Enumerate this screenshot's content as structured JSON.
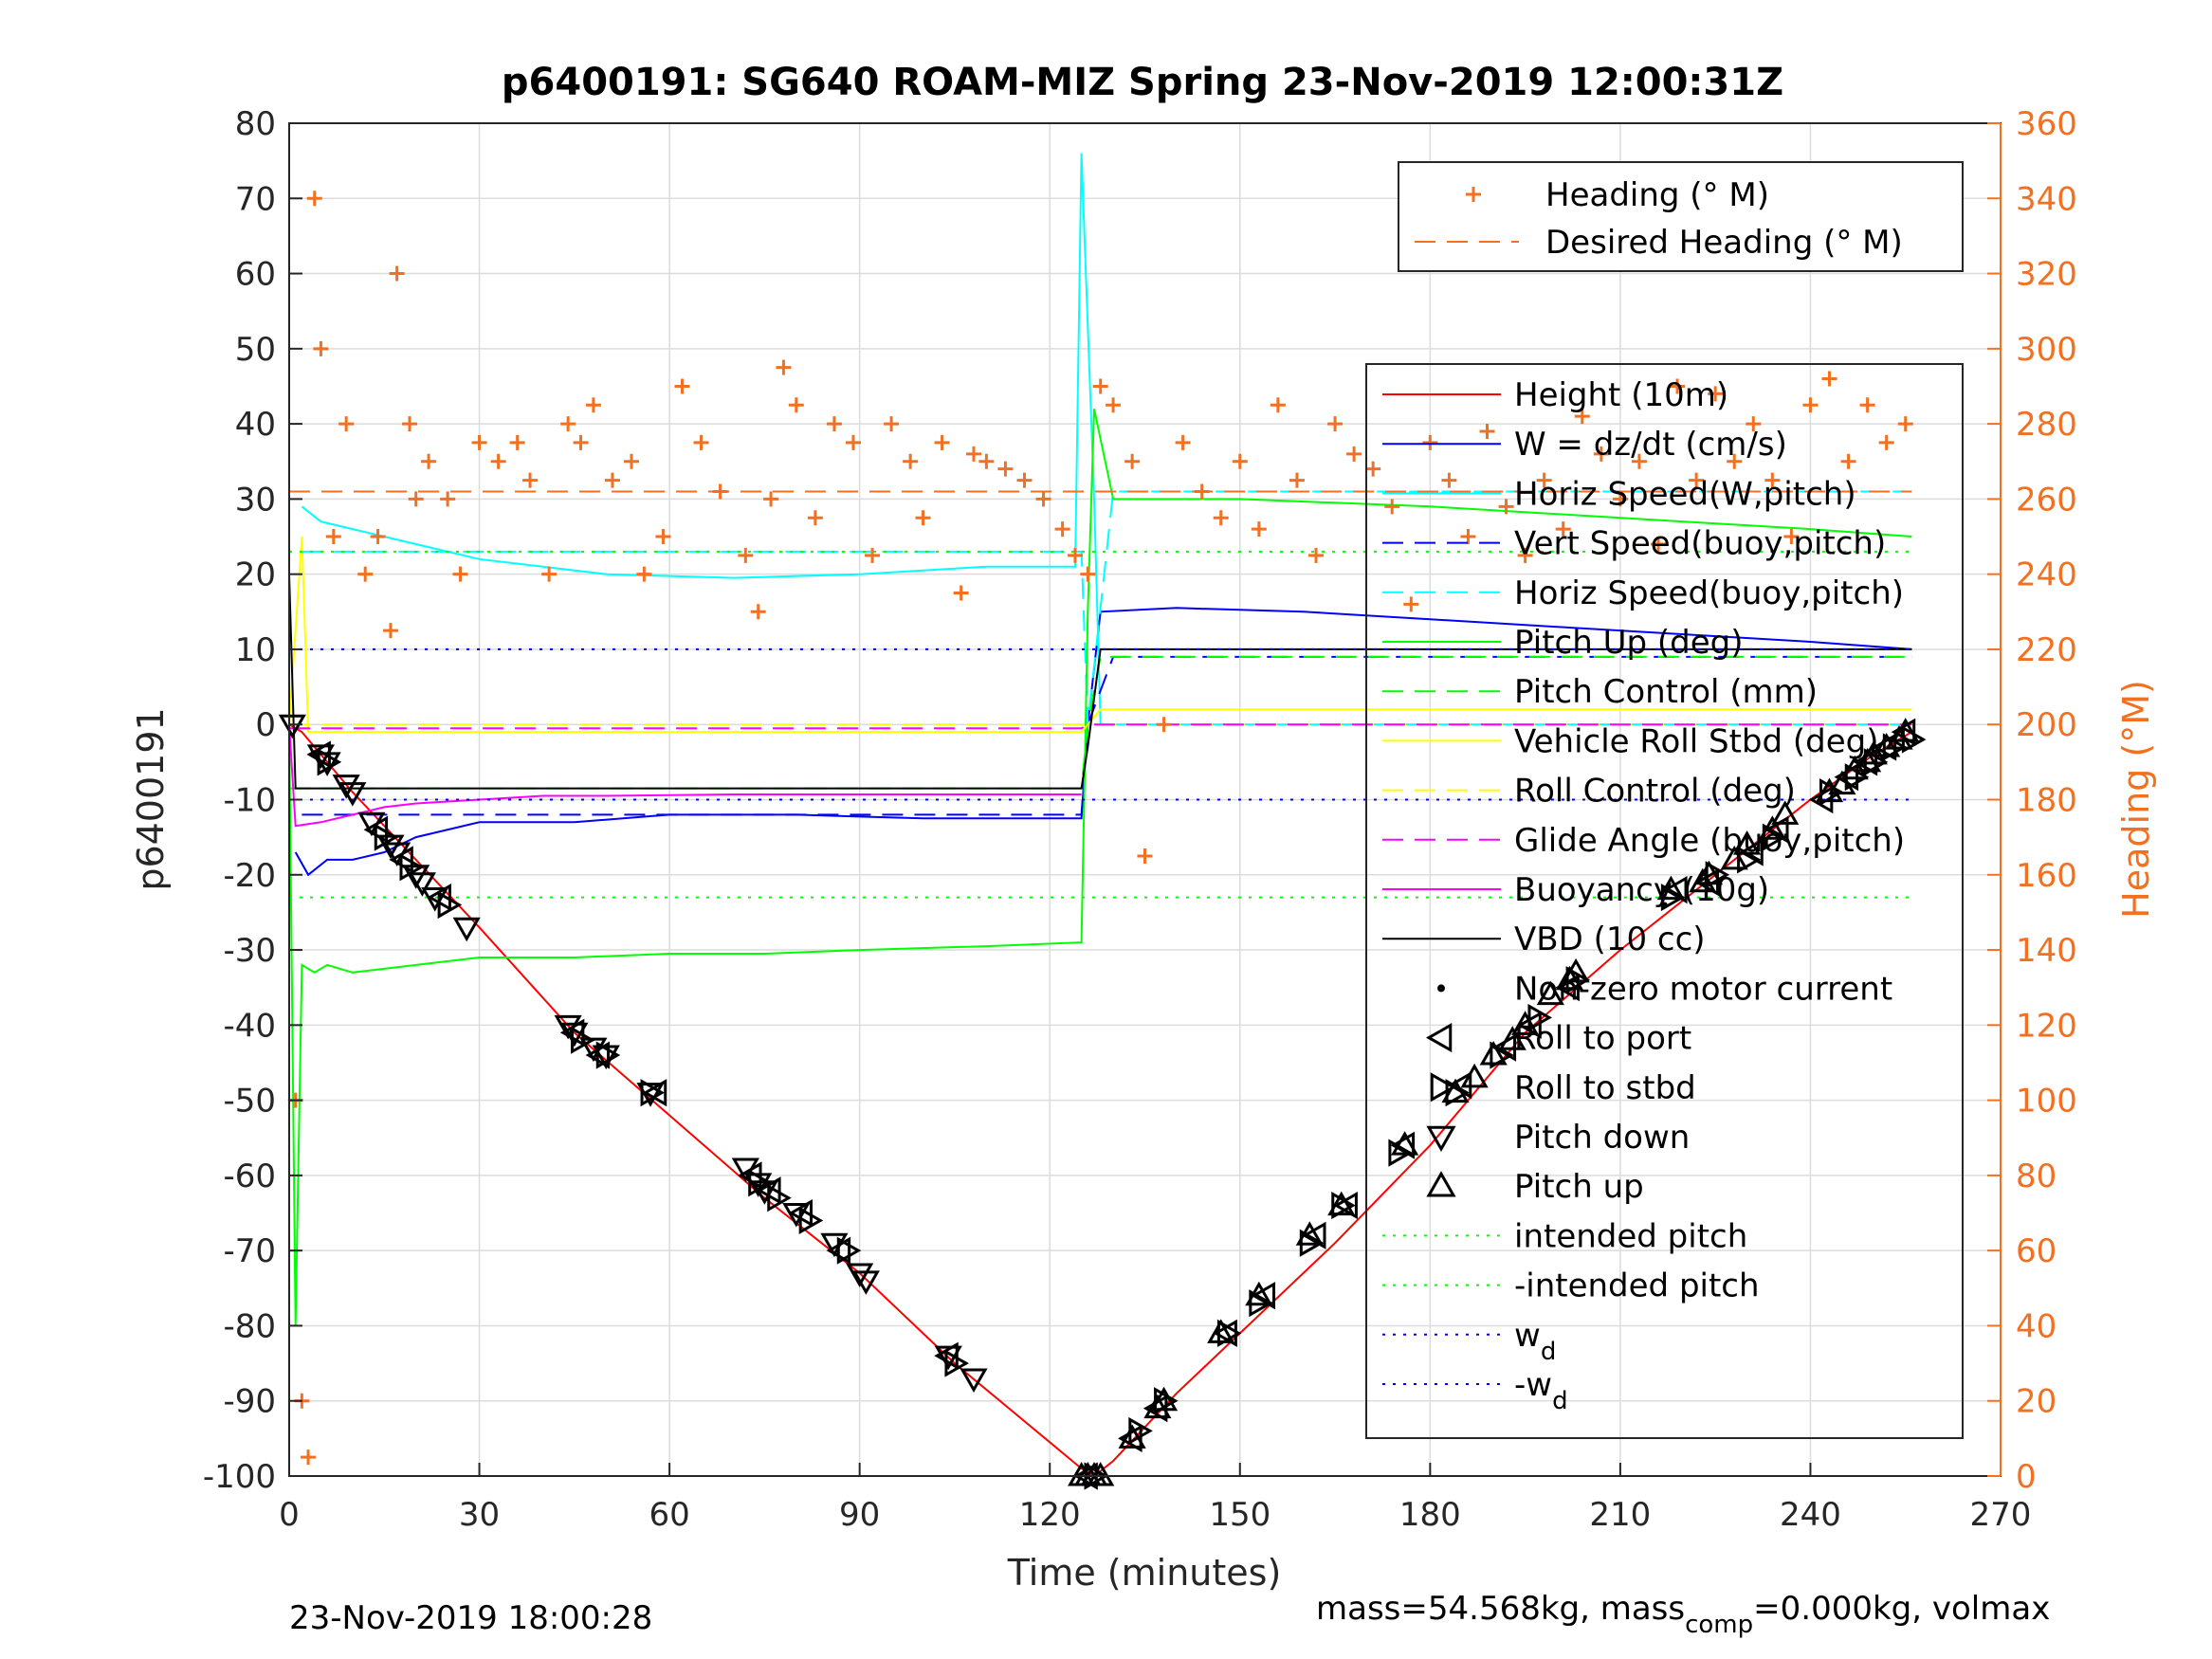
{
  "chart_data": {
    "type": "line",
    "title": "p6400191: SG640 ROAM-MIZ Spring 23-Nov-2019 12:00:31Z",
    "xlabel": "Time (minutes)",
    "ylabel": "p6400191",
    "y2label": "Heading (°M)",
    "xlim": [
      0,
      270
    ],
    "ylim": [
      -100,
      80
    ],
    "y2lim": [
      0,
      360
    ],
    "xticks": [
      "0",
      "30",
      "60",
      "90",
      "120",
      "150",
      "180",
      "210",
      "240",
      "270"
    ],
    "yticks": [
      "80",
      "70",
      "60",
      "50",
      "40",
      "30",
      "20",
      "10",
      "0",
      "-10",
      "-20",
      "-30",
      "-40",
      "-50",
      "-60",
      "-70",
      "-80",
      "-90",
      "-100"
    ],
    "y2ticks": [
      "360",
      "340",
      "320",
      "300",
      "280",
      "260",
      "240",
      "220",
      "200",
      "180",
      "160",
      "140",
      "120",
      "100",
      "80",
      "60",
      "40",
      "20",
      "0"
    ],
    "grid": true,
    "legend_heading": {
      "position": "top-right",
      "entries": [
        {
          "label": "Heading (° M)",
          "color": "#F37021",
          "marker": "plus"
        },
        {
          "label": "Desired Heading (° M)",
          "color": "#F37021",
          "style": "dashed"
        }
      ]
    },
    "legend_main": {
      "position": "right",
      "entries": [
        {
          "label": "Height (10m)",
          "color": "#FF0000",
          "style": "solid"
        },
        {
          "label": "W = dz/dt (cm/s)",
          "color": "#0000FF",
          "style": "solid"
        },
        {
          "label": "Horiz Speed(W,pitch)",
          "color": "#00FFFF",
          "style": "solid"
        },
        {
          "label": "Vert Speed(buoy,pitch)",
          "color": "#0000FF",
          "style": "dashed"
        },
        {
          "label": "Horiz Speed(buoy,pitch)",
          "color": "#00FFFF",
          "style": "dashed"
        },
        {
          "label": "Pitch Up (deg)",
          "color": "#00FF00",
          "style": "solid"
        },
        {
          "label": "Pitch Control (mm)",
          "color": "#00FF00",
          "style": "dashed"
        },
        {
          "label": "Vehicle Roll Stbd (deg)",
          "color": "#FFFF00",
          "style": "solid"
        },
        {
          "label": "Roll Control (deg)",
          "color": "#FFFF00",
          "style": "dashed"
        },
        {
          "label": "Glide Angle (buoy,pitch)",
          "color": "#FF00FF",
          "style": "dashed"
        },
        {
          "label": "Buoyancy (10g)",
          "color": "#FF00FF",
          "style": "solid"
        },
        {
          "label": "VBD (10 cc)",
          "color": "#000000",
          "style": "solid"
        },
        {
          "label": "Non-zero motor current",
          "color": "#000000",
          "marker": "dot"
        },
        {
          "label": "Roll to port",
          "color": "#000000",
          "marker": "tri-left"
        },
        {
          "label": "Roll to stbd",
          "color": "#000000",
          "marker": "tri-right"
        },
        {
          "label": "Pitch down",
          "color": "#000000",
          "marker": "tri-down"
        },
        {
          "label": "Pitch up",
          "color": "#000000",
          "marker": "tri-up"
        },
        {
          "label": "intended pitch",
          "color": "#00FF00",
          "style": "dotted"
        },
        {
          "label": "-intended pitch",
          "color": "#00FF00",
          "style": "dotted"
        },
        {
          "label": "w",
          "sub": "d",
          "color": "#0000FF",
          "style": "dotted"
        },
        {
          "label": "-w",
          "sub": "d",
          "color": "#0000FF",
          "style": "dotted"
        }
      ]
    },
    "series": [
      {
        "name": "Height (10m)",
        "x": [
          0,
          2,
          10,
          20,
          30,
          45,
          60,
          75,
          90,
          105,
          115,
          125,
          127,
          130,
          140,
          150,
          165,
          180,
          195,
          210,
          225,
          240,
          250,
          256
        ],
        "y": [
          0,
          -1,
          -9,
          -18,
          -27,
          -41,
          -52,
          -63,
          -73,
          -85,
          -92,
          -99,
          -100,
          -98,
          -89,
          -81,
          -69,
          -56,
          -41,
          -30,
          -20,
          -10,
          -4,
          -1
        ]
      },
      {
        "name": "W = dz/dt (cm/s)",
        "x": [
          1,
          3,
          6,
          10,
          15,
          20,
          30,
          45,
          60,
          80,
          100,
          125,
          126,
          128,
          140,
          160,
          180,
          200,
          220,
          240,
          256
        ],
        "y": [
          -17,
          -20,
          -18,
          -18,
          -17,
          -15,
          -13,
          -13,
          -12,
          -12,
          -12.5,
          -12.5,
          0,
          15,
          15.5,
          15,
          14,
          13,
          12,
          11,
          10
        ]
      },
      {
        "name": "Horiz Speed(W,pitch)",
        "x": [
          2,
          5,
          10,
          20,
          30,
          40,
          50,
          70,
          90,
          110,
          124,
          125,
          127,
          128,
          130,
          150,
          180,
          210,
          240,
          256
        ],
        "y": [
          29,
          27,
          26,
          24,
          22,
          21,
          20,
          19.5,
          20,
          21,
          21,
          76,
          30,
          0,
          0,
          0,
          0,
          0,
          0,
          0
        ]
      },
      {
        "name": "Vert Speed(buoy,pitch)",
        "x": [
          2,
          10,
          30,
          60,
          90,
          125,
          126,
          130,
          150,
          180,
          210,
          240,
          256
        ],
        "y": [
          -12,
          -12,
          -12,
          -12,
          -12,
          -12,
          0,
          9,
          9,
          9,
          9,
          9,
          9
        ]
      },
      {
        "name": "Horiz Speed(buoy,pitch)",
        "x": [
          2,
          10,
          30,
          60,
          90,
          125,
          126,
          130,
          150,
          180,
          210,
          240,
          256
        ],
        "y": [
          23,
          23,
          23,
          23,
          23,
          23,
          0,
          31,
          31,
          31,
          31,
          31,
          31
        ]
      },
      {
        "name": "Pitch Up (deg)",
        "x": [
          0,
          1,
          2,
          4,
          6,
          10,
          20,
          30,
          45,
          60,
          75,
          90,
          110,
          125,
          126,
          127,
          130,
          150,
          180,
          200,
          220,
          240,
          256
        ],
        "y": [
          0,
          -80,
          -32,
          -33,
          -32,
          -33,
          -32,
          -31,
          -31,
          -30.5,
          -30.5,
          -30,
          -29.5,
          -29,
          15,
          42,
          30,
          30,
          29,
          28,
          27,
          26,
          25
        ]
      },
      {
        "name": "Pitch Control (mm)",
        "x": [
          0,
          125,
          126,
          128,
          256
        ],
        "y": [
          -8.5,
          -8.5,
          0,
          9,
          9
        ]
      },
      {
        "name": "Vehicle Roll Stbd (deg)",
        "x": [
          0,
          2,
          3,
          5,
          20,
          60,
          100,
          125,
          126,
          128,
          150,
          180,
          210,
          240,
          256
        ],
        "y": [
          0,
          25,
          -1,
          -1,
          -1,
          -1,
          -1,
          -1,
          0,
          2,
          2,
          2,
          2,
          2,
          2
        ]
      },
      {
        "name": "Roll Control (deg)",
        "x": [
          0,
          125,
          126,
          256
        ],
        "y": [
          0,
          0,
          0,
          0
        ]
      },
      {
        "name": "Glide Angle (buoy,pitch)",
        "x": [
          0,
          125,
          126,
          256
        ],
        "y": [
          -0.5,
          -0.5,
          0,
          0
        ]
      },
      {
        "name": "Buoyancy (10g)",
        "x": [
          0,
          1,
          5,
          10,
          15,
          20,
          30,
          40,
          50,
          70,
          100,
          125
        ],
        "y": [
          0,
          -13.5,
          -13,
          -12,
          -11,
          -10.5,
          -10,
          -9.5,
          -9.5,
          -9.3,
          -9.3,
          -9.3
        ]
      },
      {
        "name": "VBD (10 cc)",
        "x": [
          0,
          1,
          2,
          125,
          126,
          128,
          256
        ],
        "y": [
          20,
          -8.5,
          -8.5,
          -8.5,
          -3,
          10,
          10
        ]
      },
      {
        "name": "intended pitch",
        "x": [
          0,
          256
        ],
        "y": [
          23,
          23
        ]
      },
      {
        "name": "-intended pitch",
        "x": [
          0,
          256
        ],
        "y": [
          -23,
          -23
        ]
      },
      {
        "name": "w",
        "x": [
          0,
          256
        ],
        "y": [
          10,
          10
        ]
      },
      {
        "name": "-w",
        "x": [
          0,
          256
        ],
        "y": [
          -10,
          -10
        ]
      },
      {
        "name": "Desired Heading (° M)",
        "axis": "right",
        "x": [
          0,
          256
        ],
        "y": [
          262,
          262
        ]
      },
      {
        "name": "Heading (° M)",
        "axis": "right",
        "x": [
          1,
          2,
          3,
          4,
          5,
          7,
          9,
          12,
          14,
          16,
          17,
          19,
          20,
          22,
          25,
          27,
          30,
          33,
          36,
          38,
          41,
          44,
          46,
          48,
          51,
          54,
          56,
          59,
          62,
          65,
          68,
          72,
          74,
          76,
          78,
          80,
          83,
          86,
          89,
          92,
          95,
          98,
          100,
          103,
          106,
          108,
          110,
          113,
          116,
          119,
          122,
          124,
          126,
          128,
          130,
          133,
          135,
          138,
          141,
          144,
          147,
          150,
          153,
          156,
          159,
          162,
          165,
          168,
          171,
          174,
          177,
          180,
          183,
          186,
          189,
          192,
          195,
          198,
          201,
          204,
          207,
          210,
          213,
          216,
          219,
          222,
          225,
          228,
          231,
          234,
          237,
          240,
          243,
          246,
          249,
          252,
          255
        ],
        "y": [
          100,
          20,
          5,
          340,
          300,
          250,
          280,
          240,
          250,
          225,
          320,
          280,
          260,
          270,
          260,
          240,
          275,
          270,
          275,
          265,
          240,
          280,
          275,
          285,
          265,
          270,
          240,
          250,
          290,
          275,
          262,
          245,
          230,
          260,
          295,
          285,
          255,
          280,
          275,
          245,
          280,
          270,
          255,
          275,
          235,
          272,
          270,
          268,
          265,
          260,
          252,
          245,
          240,
          290,
          285,
          270,
          165,
          200,
          275,
          262,
          255,
          270,
          252,
          285,
          265,
          245,
          280,
          272,
          268,
          258,
          232,
          275,
          265,
          250,
          278,
          258,
          245,
          265,
          252,
          282,
          272,
          260,
          270,
          248,
          290,
          265,
          288,
          270,
          280,
          265,
          250,
          285,
          292,
          270,
          285,
          275,
          280
        ]
      },
      {
        "name": "Non-zero motor current",
        "x": [
          217
        ],
        "y": [
          -24
        ]
      }
    ],
    "markers": {
      "pitch_down": {
        "x": [
          0.5,
          5,
          6,
          9,
          10,
          13,
          16,
          17,
          20,
          21,
          23,
          28,
          44,
          45,
          48,
          50,
          57,
          72,
          74,
          75,
          80,
          86,
          90,
          91,
          104,
          108
        ],
        "y": [
          0,
          -4,
          -5,
          -8,
          -9,
          -13,
          -16,
          -17,
          -20,
          -21,
          -23,
          -27,
          -40,
          -41,
          -43,
          -44,
          -49,
          -59,
          -61,
          -62,
          -65,
          -69,
          -73,
          -74,
          -84,
          -87
        ]
      },
      "pitch_up": {
        "x": [
          125,
          126,
          127,
          128,
          133,
          137,
          138,
          147,
          153,
          161,
          166,
          176,
          184,
          187,
          190,
          193,
          195,
          199,
          202,
          203,
          218,
          223,
          224,
          228,
          230,
          234,
          236,
          243,
          245,
          247,
          249,
          250,
          252,
          254,
          255
        ],
        "y": [
          -100,
          -100,
          -100,
          -100,
          -95,
          -91,
          -90,
          -81,
          -76,
          -68,
          -64,
          -56,
          -49,
          -47,
          -44,
          -42,
          -40,
          -36,
          -34,
          -33,
          -22,
          -21,
          -20,
          -18,
          -16,
          -14,
          -12,
          -9,
          -8,
          -6,
          -5,
          -4,
          -3,
          -2,
          -1
        ]
      },
      "roll_to_port": {
        "x": [
          5,
          14,
          18,
          24,
          45,
          49,
          58,
          73,
          76,
          81,
          87,
          104,
          126,
          133,
          137,
          148,
          154,
          162,
          167,
          176,
          185,
          192,
          196,
          202,
          219,
          224,
          231,
          235,
          242,
          246,
          249,
          252,
          255
        ],
        "y": [
          -4,
          -14,
          -18,
          -23,
          -41,
          -44,
          -49,
          -60,
          -62,
          -65,
          -70,
          -84,
          -100,
          -95,
          -91,
          -81,
          -76,
          -68,
          -64,
          -56,
          -48,
          -43,
          -40,
          -35,
          -22,
          -21,
          -17,
          -14,
          -10,
          -7,
          -5,
          -3,
          -1
        ]
      },
      "roll_to_stbd": {
        "x": [
          6,
          15,
          19,
          25,
          46,
          50,
          57,
          74,
          77,
          82,
          88,
          105,
          127,
          134,
          138,
          148,
          153,
          161,
          166,
          175,
          184,
          191,
          197,
          203,
          218,
          225,
          230,
          234,
          243,
          247,
          250,
          253,
          256
        ],
        "y": [
          -5,
          -15,
          -19,
          -24,
          -42,
          -44,
          -49,
          -61,
          -63,
          -66,
          -70,
          -85,
          -100,
          -94,
          -90,
          -81,
          -77,
          -69,
          -64,
          -57,
          -49,
          -44,
          -39,
          -34,
          -23,
          -20,
          -18,
          -15,
          -9,
          -7,
          -5,
          -3,
          -2
        ]
      }
    }
  },
  "footer": {
    "timestamp": "23-Nov-2019 18:00:28",
    "mass_text": "mass=54.568kg, mass",
    "mass_sub": "comp",
    "mass_rest": "=0.000kg, volmax"
  }
}
